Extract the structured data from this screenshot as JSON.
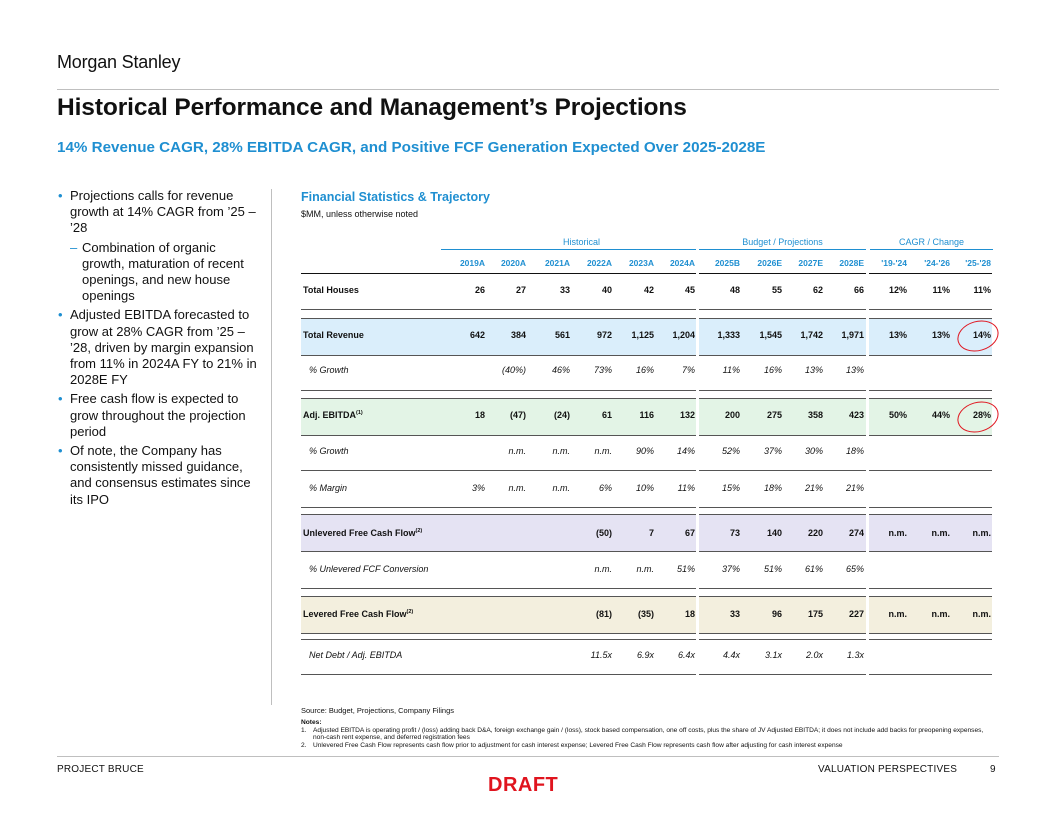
{
  "brand": "Morgan Stanley",
  "title": "Historical Performance and Management’s Projections",
  "subtitle": "14% Revenue CAGR, 28% EBITDA CAGR, and Positive FCF Generation Expected Over 2025-2028E",
  "bullets": [
    {
      "level": 1,
      "text": "Projections calls for revenue growth at 14% CAGR from ’25 – ’28"
    },
    {
      "level": 2,
      "text": "Combination of organic growth, maturation of recent openings, and new house openings"
    },
    {
      "level": 1,
      "text": "Adjusted EBITDA forecasted to grow at 28% CAGR from ’25 – ’28, driven by margin expansion from 11% in 2024A FY to 21% in 2028E FY"
    },
    {
      "level": 1,
      "text": "Free cash flow is expected to grow throughout the projection period"
    },
    {
      "level": 1,
      "text": "Of note, the Company has consistently missed guidance, and consensus estimates since its IPO"
    }
  ],
  "table": {
    "title": "Financial Statistics & Trajectory",
    "unit_note": "$MM, unless otherwise noted",
    "groups": [
      "Historical",
      "Budget / Projections",
      "CAGR / Change"
    ],
    "columns": [
      "2019A",
      "2020A",
      "2021A",
      "2022A",
      "2023A",
      "2024A",
      "2025B",
      "2026E",
      "2027E",
      "2028E",
      "'19-'24",
      "'24-'26",
      "'25-'28"
    ],
    "rows": [
      {
        "label": "Total Houses",
        "style": "bold",
        "values": [
          "26",
          "27",
          "33",
          "40",
          "42",
          "45",
          "48",
          "55",
          "62",
          "66",
          "12%",
          "11%",
          "11%"
        ]
      },
      {
        "label": "Total Revenue",
        "style": "bold",
        "values": [
          "642",
          "384",
          "561",
          "972",
          "1,125",
          "1,204",
          "1,333",
          "1,545",
          "1,742",
          "1,971",
          "13%",
          "13%",
          "14%"
        ]
      },
      {
        "label": "% Growth",
        "style": "italic",
        "values": [
          "",
          "(40%)",
          "46%",
          "73%",
          "16%",
          "7%",
          "11%",
          "16%",
          "13%",
          "13%",
          "",
          "",
          ""
        ]
      },
      {
        "label": "Adj. EBITDA",
        "sup": "(1)",
        "style": "bold",
        "values": [
          "18",
          "(47)",
          "(24)",
          "61",
          "116",
          "132",
          "200",
          "275",
          "358",
          "423",
          "50%",
          "44%",
          "28%"
        ]
      },
      {
        "label": "% Growth",
        "style": "italic",
        "values": [
          "",
          "n.m.",
          "n.m.",
          "n.m.",
          "90%",
          "14%",
          "52%",
          "37%",
          "30%",
          "18%",
          "",
          "",
          ""
        ]
      },
      {
        "label": "% Margin",
        "style": "italic",
        "values": [
          "3%",
          "n.m.",
          "n.m.",
          "6%",
          "10%",
          "11%",
          "15%",
          "18%",
          "21%",
          "21%",
          "",
          "",
          ""
        ]
      },
      {
        "label": "Unlevered Free Cash Flow",
        "sup": "(2)",
        "style": "bold",
        "values": [
          "",
          "",
          "",
          "(50)",
          "7",
          "67",
          "73",
          "140",
          "220",
          "274",
          "n.m.",
          "n.m.",
          "n.m."
        ]
      },
      {
        "label": "% Unlevered FCF Conversion",
        "style": "italic",
        "values": [
          "",
          "",
          "",
          "n.m.",
          "n.m.",
          "51%",
          "37%",
          "51%",
          "61%",
          "65%",
          "",
          "",
          ""
        ]
      },
      {
        "label": "Levered Free Cash Flow",
        "sup": "(2)",
        "style": "bold",
        "values": [
          "",
          "",
          "",
          "(81)",
          "(35)",
          "18",
          "33",
          "96",
          "175",
          "227",
          "n.m.",
          "n.m.",
          "n.m."
        ]
      },
      {
        "label": "Net Debt / Adj. EBITDA",
        "style": "italic",
        "values": [
          "",
          "",
          "",
          "11.5x",
          "6.9x",
          "6.4x",
          "4.4x",
          "3.1x",
          "2.0x",
          "1.3x",
          "",
          "",
          ""
        ]
      }
    ],
    "highlight_color": "#e0141e"
  },
  "source": "Source: Budget, Projections, Company Filings",
  "notes": {
    "heading": "Notes:",
    "items": [
      "Adjusted EBITDA is operating profit / (loss) adding back D&A, foreign exchange gain / (loss), stock based compensation, one off costs, plus the share of JV Adjusted EBITDA; it does not include add backs for preopening expenses, non-cash rent expense, and deferred registration fees",
      "Unlevered Free Cash Flow represents cash flow prior to adjustment for cash interest expense; Levered Free Cash Flow represents cash flow after adjusting for cash interest expense"
    ]
  },
  "footer": {
    "left": "PROJECT BRUCE",
    "right": "VALUATION PERSPECTIVES",
    "page": "9"
  },
  "draft_label": "DRAFT",
  "colors": {
    "accent": "#1f8fd1",
    "draft": "#e0141e",
    "revenue_band": "#daeefb",
    "ebitda_band": "#e3f4e6",
    "ufcf_band": "#e5e3f3",
    "lfcf_band": "#f3efde"
  }
}
